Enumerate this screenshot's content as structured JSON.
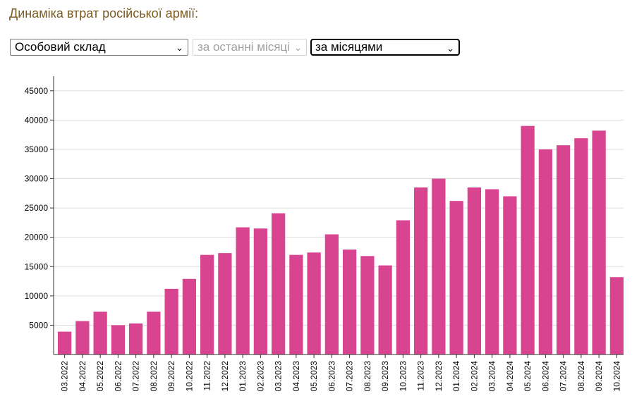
{
  "header": {
    "title": "Динаміка втрат російської армії:"
  },
  "controls": {
    "category_select": {
      "value": "Особовий склад"
    },
    "period_select": {
      "value": "за останні місяці",
      "disabled": true
    },
    "grouping_select": {
      "value": "за місяцями"
    }
  },
  "colors": {
    "bar": "#d94491",
    "title": "#7a5a1e",
    "grid": "#dddddd",
    "axis": "#333333"
  },
  "chart_data": {
    "type": "bar",
    "title": "",
    "xlabel": "",
    "ylabel": "",
    "ylim": [
      0,
      47500
    ],
    "yticks": [
      5000,
      10000,
      15000,
      20000,
      25000,
      30000,
      35000,
      40000,
      45000
    ],
    "grid": true,
    "categories": [
      "03.2022",
      "04.2022",
      "05.2022",
      "06.2022",
      "07.2022",
      "08.2022",
      "09.2022",
      "10.2022",
      "11.2022",
      "12.2022",
      "01.2023",
      "02.2023",
      "03.2023",
      "04.2023",
      "05.2023",
      "06.2023",
      "07.2023",
      "08.2023",
      "09.2023",
      "10.2023",
      "11.2023",
      "12.2023",
      "01.2024",
      "02.2024",
      "03.2024",
      "04.2024",
      "05.2024",
      "06.2024",
      "07.2024",
      "08.2024",
      "09.2024",
      "10.2024"
    ],
    "values": [
      3900,
      5700,
      7300,
      5000,
      5300,
      7300,
      11200,
      12900,
      17000,
      17300,
      21700,
      21500,
      24100,
      17000,
      17400,
      20500,
      17900,
      16800,
      15200,
      22900,
      28500,
      30000,
      26200,
      28500,
      28200,
      27000,
      39000,
      35000,
      35700,
      36900,
      38200,
      13200
    ]
  }
}
